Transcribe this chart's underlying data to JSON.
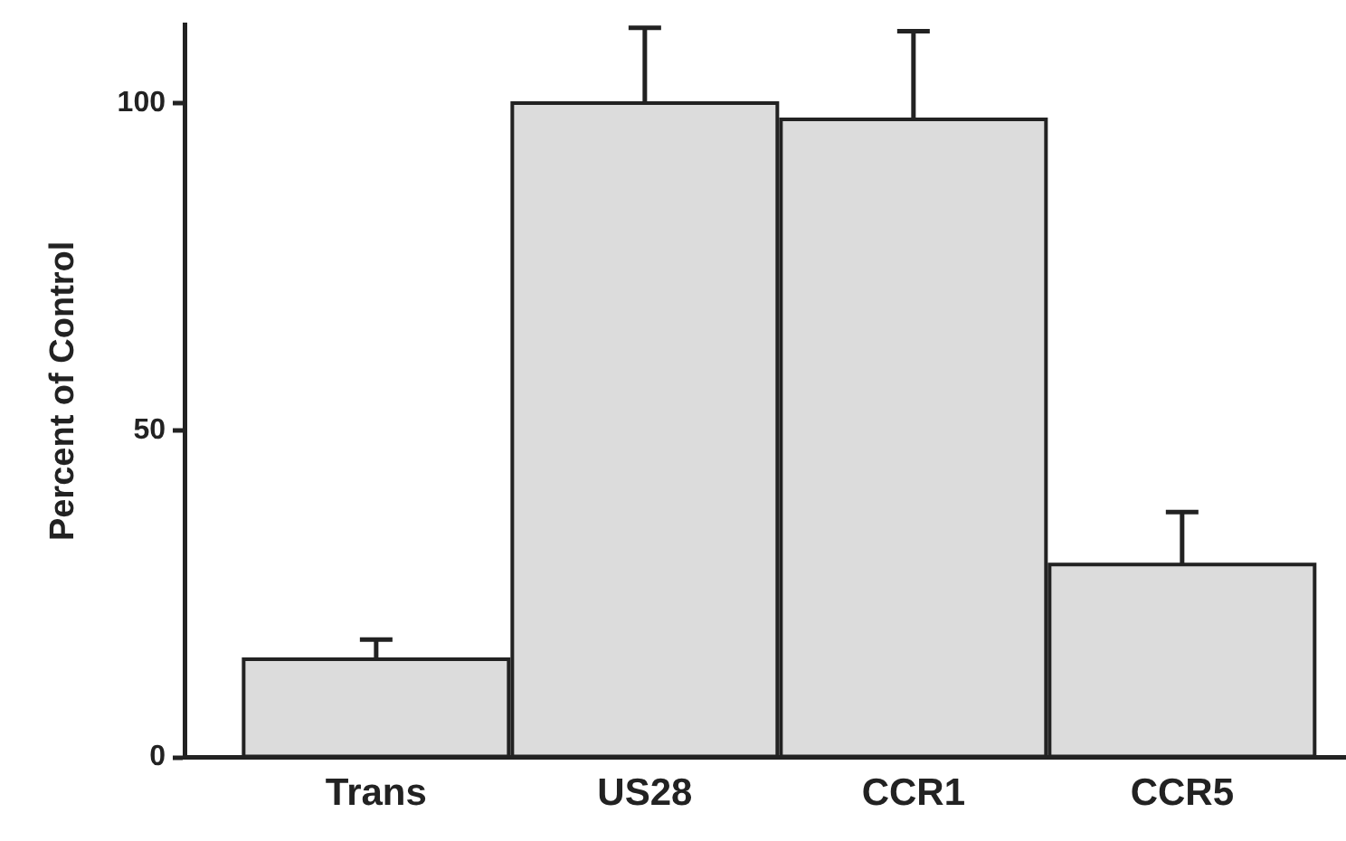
{
  "chart_data": {
    "type": "bar",
    "ylabel": "Percent of Control",
    "categories": [
      "Trans",
      "US28",
      "CCR1",
      "CCR5"
    ],
    "values": [
      15,
      100,
      97.5,
      29.5
    ],
    "errors": [
      [
        15,
        18
      ],
      [
        100,
        111.5
      ],
      [
        97.5,
        111
      ],
      [
        29.5,
        37.5
      ]
    ],
    "color": "#dcdcdc",
    "ylim": [
      0,
      112
    ],
    "yticks": [
      0,
      50,
      100
    ],
    "grid": false,
    "legend": false
  }
}
